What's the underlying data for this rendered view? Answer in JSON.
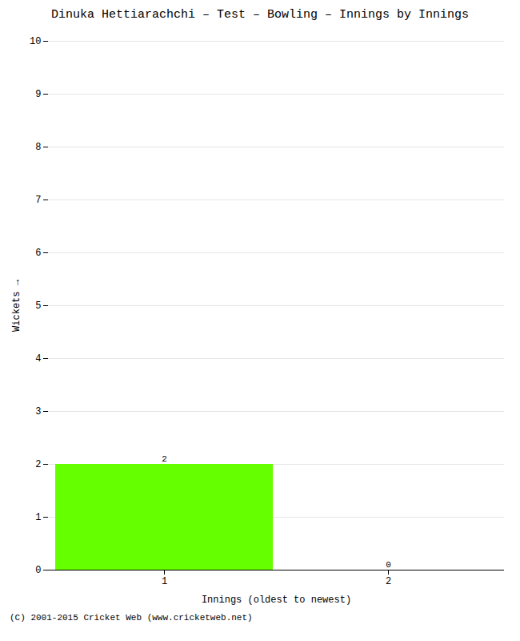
{
  "chart_data": {
    "type": "bar",
    "title": "Dinuka Hettiarachchi – Test – Bowling – Innings by Innings",
    "xlabel": "Innings (oldest to newest)",
    "ylabel": "Wickets",
    "caption": "(C) 2001-2015 Cricket Web (www.cricketweb.net)",
    "categories": [
      1,
      2
    ],
    "values": [
      2,
      0
    ],
    "color": "#66ff00",
    "data_labels": true,
    "ylim": [
      0,
      10
    ],
    "yticks": [
      0,
      1,
      2,
      3,
      4,
      5,
      6,
      7,
      8,
      9,
      10
    ],
    "grid": true
  }
}
